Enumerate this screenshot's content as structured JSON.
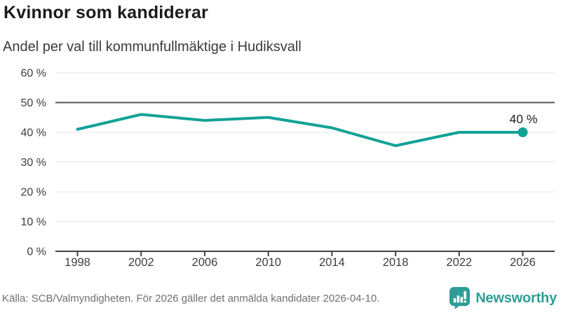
{
  "header": {
    "title": "Kvinnor som kandiderar",
    "subtitle": "Andel per val till kommunfullmäktige i Hudiksvall"
  },
  "chart_data": {
    "type": "line",
    "title": "Kvinnor som kandiderar",
    "subtitle": "Andel per val till kommunfullmäktige i Hudiksvall",
    "categories": [
      "1998",
      "2002",
      "2006",
      "2010",
      "2014",
      "2018",
      "2022",
      "2026"
    ],
    "values": [
      41,
      46,
      44,
      45,
      41.5,
      35.5,
      40,
      40
    ],
    "end_point_label": "40 %",
    "ylim": [
      0,
      60
    ],
    "ytick_step": 10,
    "ytick_labels": [
      "0 %",
      "10 %",
      "20 %",
      "30 %",
      "40 %",
      "50 %",
      "60 %"
    ],
    "reference_line_value": 50,
    "grid": true,
    "legend_position": "none",
    "line_color": "#11A296",
    "colors": {
      "grid_light": "#e4e4e4",
      "reference_line": "#55575A",
      "axis_line": "#3f4143",
      "tick_label": "#3d3e40",
      "end_label": "#232323"
    }
  },
  "footer": {
    "source": "Källa: SCB/Valmyndigheten. För 2026 gäller det anmälda kandidater 2026-04-10.",
    "brand_name": "Newsworthy",
    "brand_color": "#2E9D96"
  }
}
